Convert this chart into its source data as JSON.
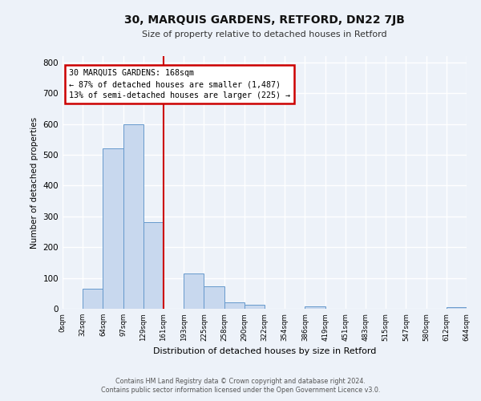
{
  "title": "30, MARQUIS GARDENS, RETFORD, DN22 7JB",
  "subtitle": "Size of property relative to detached houses in Retford",
  "xlabel": "Distribution of detached houses by size in Retford",
  "ylabel": "Number of detached properties",
  "bar_color": "#c8d8ee",
  "bar_edge_color": "#6699cc",
  "tick_labels": [
    "0sqm",
    "32sqm",
    "64sqm",
    "97sqm",
    "129sqm",
    "161sqm",
    "193sqm",
    "225sqm",
    "258sqm",
    "290sqm",
    "322sqm",
    "354sqm",
    "386sqm",
    "419sqm",
    "451sqm",
    "483sqm",
    "515sqm",
    "547sqm",
    "580sqm",
    "612sqm",
    "644sqm"
  ],
  "bar_values": [
    0,
    65,
    520,
    600,
    280,
    0,
    115,
    72,
    22,
    12,
    0,
    0,
    7,
    0,
    0,
    0,
    0,
    0,
    0,
    5,
    0
  ],
  "vline_x": 5,
  "vline_color": "#cc0000",
  "ylim": [
    0,
    820
  ],
  "yticks": [
    0,
    100,
    200,
    300,
    400,
    500,
    600,
    700,
    800
  ],
  "annotation_title": "30 MARQUIS GARDENS: 168sqm",
  "annotation_line1": "← 87% of detached houses are smaller (1,487)",
  "annotation_line2": "13% of semi-detached houses are larger (225) →",
  "annotation_box_color": "#cc0000",
  "footer_line1": "Contains HM Land Registry data © Crown copyright and database right 2024.",
  "footer_line2": "Contains public sector information licensed under the Open Government Licence v3.0.",
  "bg_color": "#edf2f9",
  "grid_color": "#ffffff"
}
